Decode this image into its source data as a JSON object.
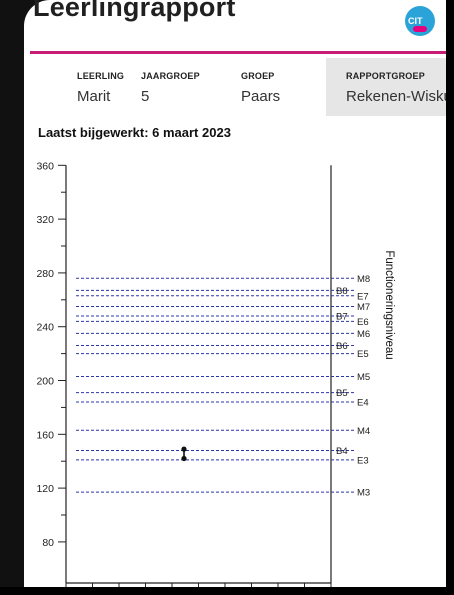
{
  "report": {
    "title": "Leerlingrapport",
    "logo_text": "CIT",
    "updated": "Laatst bijgewerkt: 6 maart 2023"
  },
  "info": [
    {
      "label": "LEERLING",
      "value": "Marit"
    },
    {
      "label": "JAARGROEP",
      "value": "5"
    },
    {
      "label": "GROEP",
      "value": "Paars"
    },
    {
      "label": "RAPPORTGROEP",
      "value": "Rekenen-Wiskunde"
    }
  ],
  "colors": {
    "accent_magenta": "#c81d77",
    "reference_line": "#2a36a8",
    "logo_blue": "#2aa4d8"
  },
  "chart_data": {
    "type": "scatter",
    "ylim": [
      70,
      360
    ],
    "y_ticks": [
      80,
      120,
      160,
      200,
      240,
      280,
      320,
      360
    ],
    "ylabel_right": "Functioneringsniveau",
    "reference_levels": [
      {
        "name": "M8",
        "value": 276
      },
      {
        "name": "B8",
        "value": 267
      },
      {
        "name": "E7",
        "value": 263
      },
      {
        "name": "M7",
        "value": 255
      },
      {
        "name": "B7",
        "value": 248
      },
      {
        "name": "E6",
        "value": 244
      },
      {
        "name": "M6",
        "value": 235
      },
      {
        "name": "B6",
        "value": 226
      },
      {
        "name": "E5",
        "value": 220
      },
      {
        "name": "M5",
        "value": 203
      },
      {
        "name": "B5",
        "value": 191
      },
      {
        "name": "E4",
        "value": 184
      },
      {
        "name": "M4",
        "value": 163
      },
      {
        "name": "B4",
        "value": 148
      },
      {
        "name": "E3",
        "value": 141
      },
      {
        "name": "M3",
        "value": 117
      }
    ],
    "measurement": {
      "x": 5,
      "low": 142,
      "high": 149
    }
  }
}
